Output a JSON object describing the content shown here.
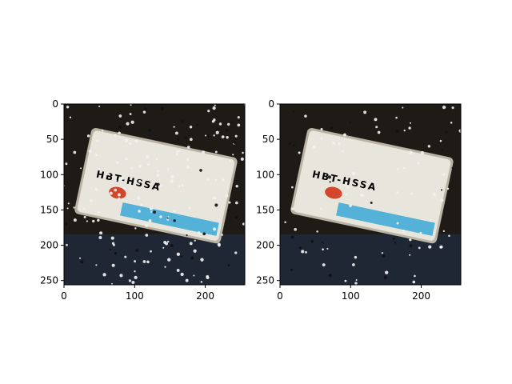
{
  "figure": {
    "background": "#ffffff",
    "panels": [
      {
        "name": "left",
        "description_hidden": "noisy rotated license plate crop",
        "x_ticks": [
          "0",
          "100",
          "200"
        ],
        "y_ticks": [
          "0",
          "50",
          "100",
          "150",
          "200",
          "250"
        ],
        "plate_text": "HBT-HSSA",
        "noise_level": 0.9
      },
      {
        "name": "right",
        "description_hidden": "denoised rotated license plate crop",
        "x_ticks": [
          "0",
          "100",
          "200"
        ],
        "y_ticks": [
          "0",
          "50",
          "100",
          "150",
          "200",
          "250"
        ],
        "plate_text": "HBT-HSSA",
        "noise_level": 0.45
      }
    ],
    "colors": {
      "plate_white": "#e8e6dc",
      "plate_edge": "#c9c4b3",
      "letters": "#2a3f66",
      "blue_stripe": "#3aa7d6",
      "red_mark": "#d2462c",
      "dark_bg": "#1e1a16",
      "bottom_bg": "#1f2634"
    }
  }
}
